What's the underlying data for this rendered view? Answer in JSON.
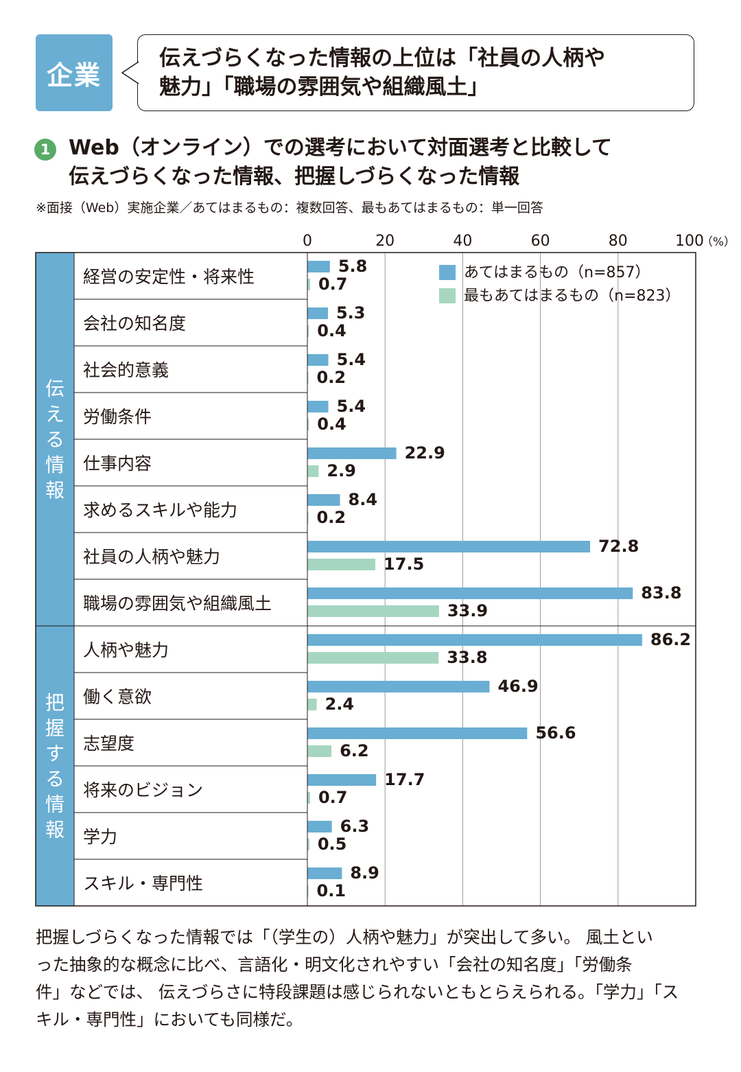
{
  "badge": "企業",
  "headline": [
    "伝えづらくなった情報の上位は「社員の人柄や",
    "魅力」「職場の雰囲気や組織風土」"
  ],
  "section_number": "1",
  "subtitle": [
    "Web（オンライン）での選考において対面選考と比較して",
    "伝えづらくなった情報、把握しづらくなった情報"
  ],
  "note": "※面接（Web）実施企業／あてはまるもの：複数回答、最もあてはまるもの：単一回答",
  "chart_data": {
    "type": "bar",
    "orientation": "horizontal",
    "x_ticks": [
      "0",
      "20",
      "40",
      "60",
      "80",
      "100"
    ],
    "unit": "（%）",
    "xlim": [
      0,
      100
    ],
    "grid": true,
    "legend_position": "top-right",
    "groups": [
      {
        "label": "伝える情報",
        "count": 8
      },
      {
        "label": "把握する情報",
        "count": 6
      }
    ],
    "categories": [
      "経営の安定性・将来性",
      "会社の知名度",
      "社会的意義",
      "労働条件",
      "仕事内容",
      "求めるスキルや能力",
      "社員の人柄や魅力",
      "職場の雰囲気や組織風土",
      "人柄や魅力",
      "働く意欲",
      "志望度",
      "将来のビジョン",
      "学力",
      "スキル・専門性"
    ],
    "series": [
      {
        "name": "あてはまるもの（n=857）",
        "color": "#6aaed3",
        "values": [
          5.8,
          5.3,
          5.4,
          5.4,
          22.9,
          8.4,
          72.8,
          83.8,
          86.2,
          46.9,
          56.6,
          17.7,
          6.3,
          8.9
        ]
      },
      {
        "name": "最もあてはまるもの（n=823）",
        "color": "#a6d6c1",
        "values": [
          0.7,
          0.4,
          0.2,
          0.4,
          2.9,
          0.2,
          17.5,
          33.9,
          33.8,
          2.4,
          6.2,
          0.7,
          0.5,
          0.1
        ]
      }
    ]
  },
  "description": [
    "把握しづらくなった情報では「（学生の）人柄や魅力」が突出して多い。 風土とい",
    "った抽象的な概念に比べ、言語化・明文化されやすい「会社の知名度」「労働条",
    "件」などでは、 伝えづらさに特段課題は感じられないともとらえられる。「学力」「ス",
    "キル・専門性」においても同様だ。"
  ]
}
